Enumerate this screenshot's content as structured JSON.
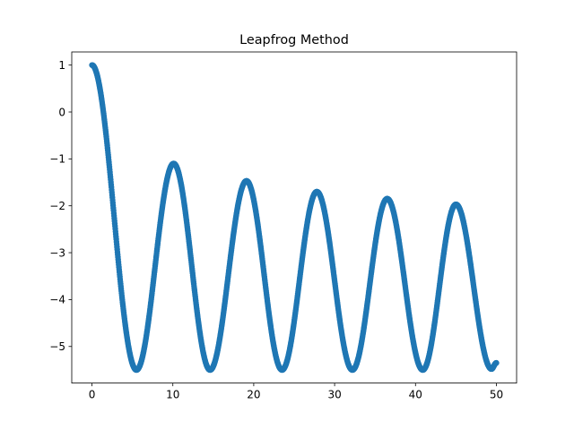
{
  "chart_data": {
    "type": "scatter",
    "title": "Leapfrog Method",
    "xlabel": "",
    "ylabel": "",
    "xlim": [
      -2.5,
      52.5
    ],
    "ylim": [
      -5.78,
      1.28
    ],
    "x_ticks": [
      0,
      10,
      20,
      30,
      40,
      50
    ],
    "y_ticks": [
      1,
      0,
      -1,
      -2,
      -3,
      -4,
      -5
    ],
    "grid": false,
    "legend": "none",
    "series_color": "#1f77b4",
    "peaks": [
      {
        "x": 0,
        "y": 1.0
      },
      {
        "x": 10.1,
        "y": -1.1
      },
      {
        "x": 19.1,
        "y": -1.47
      },
      {
        "x": 27.8,
        "y": -1.7
      },
      {
        "x": 36.5,
        "y": -1.85
      },
      {
        "x": 45.0,
        "y": -1.97
      }
    ],
    "troughs": [
      {
        "x": 5.5,
        "y": -5.5
      },
      {
        "x": 14.6,
        "y": -5.5
      },
      {
        "x": 23.5,
        "y": -5.5
      },
      {
        "x": 32.2,
        "y": -5.5
      },
      {
        "x": 40.9,
        "y": -5.5
      },
      {
        "x": 49.4,
        "y": -5.48
      }
    ],
    "end_point": {
      "x": 50.0,
      "y": -5.35
    }
  }
}
